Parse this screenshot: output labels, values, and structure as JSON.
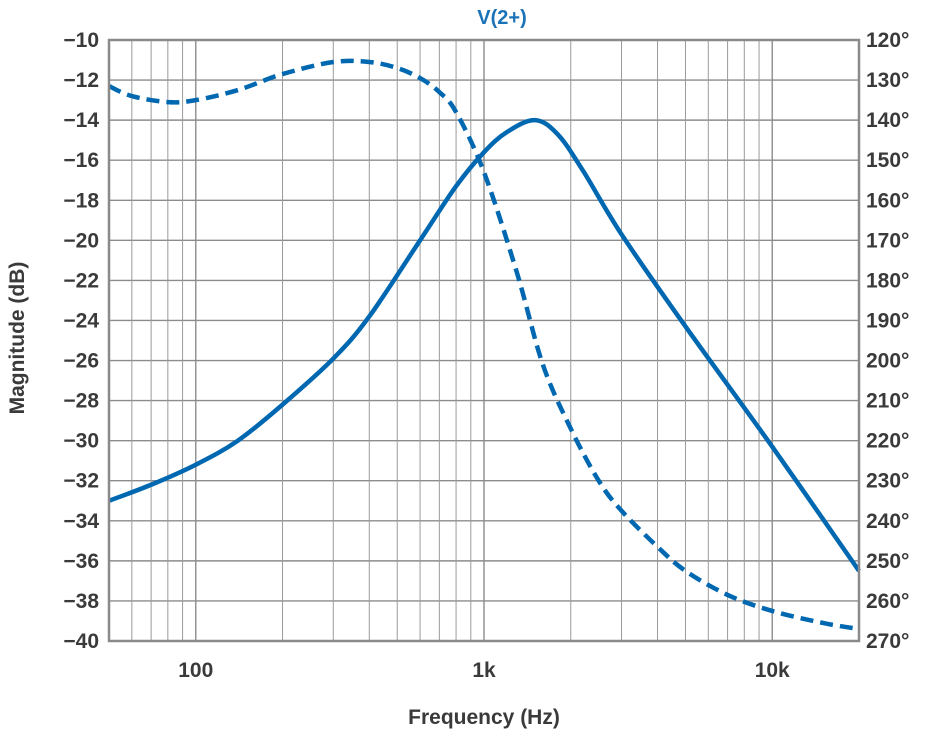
{
  "chart_data": {
    "type": "line",
    "title": "V(2+)",
    "xlabel": "Frequency (Hz)",
    "ylabel": "Magnitude (dB)",
    "y2label": "",
    "x_scale": "log",
    "xlim": [
      50,
      20000
    ],
    "ylim": [
      -40,
      -10
    ],
    "y2lim": [
      120,
      270
    ],
    "y2_inverted": true,
    "grid": true,
    "x_tick_labels": [
      {
        "value": 100,
        "label": "100"
      },
      {
        "value": 1000,
        "label": "1k"
      },
      {
        "value": 10000,
        "label": "10k"
      }
    ],
    "y_ticks": [
      -10,
      -12,
      -14,
      -16,
      -18,
      -20,
      -22,
      -24,
      -26,
      -28,
      -30,
      -32,
      -34,
      -36,
      -38,
      -40
    ],
    "y_tick_labels": [
      "−10",
      "−12",
      "−14",
      "−16",
      "−18",
      "−20",
      "−22",
      "−24",
      "−26",
      "−28",
      "−30",
      "−32",
      "−34",
      "−36",
      "−38",
      "−40"
    ],
    "y2_ticks": [
      120,
      130,
      140,
      150,
      160,
      170,
      180,
      190,
      200,
      210,
      220,
      230,
      240,
      250,
      260,
      270
    ],
    "y2_tick_labels": [
      "120°",
      "130°",
      "140°",
      "150°",
      "160°",
      "170°",
      "180°",
      "190°",
      "200°",
      "210°",
      "220°",
      "230°",
      "240°",
      "250°",
      "260°",
      "270°"
    ],
    "series": [
      {
        "axis": "left",
        "style": "solid",
        "color": "#0067b1",
        "x": [
          50,
          70,
          100,
          140,
          200,
          300,
          400,
          600,
          800,
          1000,
          1200,
          1500,
          1800,
          2200,
          3000,
          5000,
          10000,
          20000
        ],
        "y": [
          -33.0,
          -32.2,
          -31.2,
          -30.0,
          -28.2,
          -25.9,
          -23.8,
          -20.0,
          -17.3,
          -15.6,
          -14.6,
          -14.0,
          -14.7,
          -16.5,
          -19.7,
          -24.3,
          -30.3,
          -36.5
        ]
      },
      {
        "axis": "right",
        "style": "dashed",
        "color": "#0067b1",
        "x": [
          50,
          60,
          80,
          100,
          140,
          200,
          300,
          400,
          500,
          600,
          700,
          800,
          1000,
          1300,
          1600,
          2000,
          2500,
          3000,
          4000,
          5000,
          7000,
          10000,
          15000,
          20000
        ],
        "y": [
          131.5,
          134.0,
          135.5,
          135.0,
          132.5,
          128.5,
          125.5,
          125.5,
          127.0,
          129.5,
          133.0,
          138.0,
          153.0,
          178.0,
          201.0,
          217.0,
          230.0,
          237.5,
          246.5,
          252.5,
          258.5,
          262.5,
          265.5,
          267.0
        ]
      }
    ],
    "colors": {
      "line": "#0067b1",
      "title": "#1a73b8",
      "text": "#3a3a3a",
      "grid": "#8c8c8c"
    }
  }
}
